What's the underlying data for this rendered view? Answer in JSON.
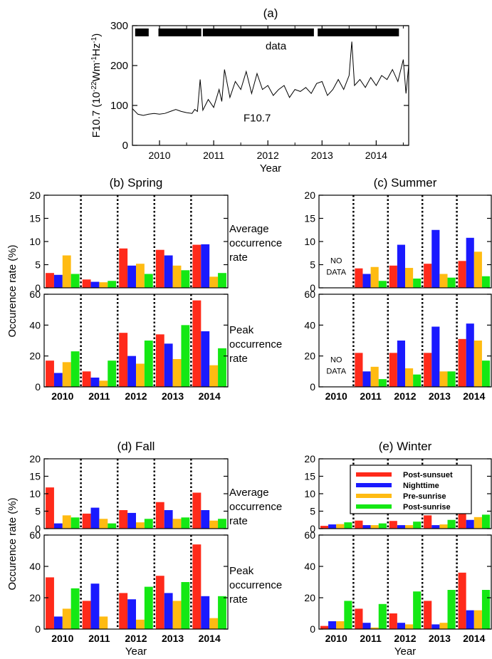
{
  "chart_data": [
    {
      "id": "a",
      "type": "line",
      "title": "(a)",
      "xlabel": "Year",
      "ylabel_html": "F10.7 (10<tspan baseline-shift=\"super\" font-size=\"9\">-22</tspan>Wm<tspan baseline-shift=\"super\" font-size=\"9\">-1</tspan>Hz<tspan baseline-shift=\"super\" font-size=\"9\">-1</tspan>)",
      "ylabel_parts": [
        "F10.7 (10",
        "-22",
        "Wm",
        "-1",
        "Hz",
        "-1",
        ")"
      ],
      "xlim": [
        2009.5,
        2014.6
      ],
      "ylim": [
        0,
        300
      ],
      "xticks": [
        "2010",
        "2011",
        "2012",
        "2013",
        "2014"
      ],
      "yticks": [
        "0",
        "100",
        "200",
        "300"
      ],
      "series_label": "F10.7",
      "data_label": "data",
      "data_coverage": [
        [
          2009.55,
          2009.8
        ],
        [
          2009.98,
          2010.77
        ],
        [
          2010.8,
          2012.85
        ],
        [
          2012.92,
          2014.42
        ]
      ],
      "series": [
        {
          "name": "F10.7",
          "x": [
            2009.5,
            2009.6,
            2009.7,
            2009.8,
            2009.9,
            2010.0,
            2010.1,
            2010.2,
            2010.3,
            2010.4,
            2010.5,
            2010.6,
            2010.65,
            2010.7,
            2010.75,
            2010.8,
            2010.9,
            2011.0,
            2011.1,
            2011.15,
            2011.2,
            2011.3,
            2011.4,
            2011.5,
            2011.6,
            2011.7,
            2011.8,
            2011.9,
            2012.0,
            2012.1,
            2012.2,
            2012.3,
            2012.4,
            2012.5,
            2012.6,
            2012.7,
            2012.8,
            2012.9,
            2013.0,
            2013.1,
            2013.2,
            2013.3,
            2013.4,
            2013.5,
            2013.55,
            2013.6,
            2013.7,
            2013.8,
            2013.9,
            2014.0,
            2014.1,
            2014.2,
            2014.3,
            2014.4,
            2014.5,
            2014.55,
            2014.6
          ],
          "values": [
            92,
            78,
            75,
            78,
            80,
            78,
            80,
            85,
            90,
            85,
            82,
            80,
            90,
            85,
            165,
            88,
            115,
            95,
            140,
            110,
            190,
            120,
            160,
            140,
            185,
            130,
            180,
            140,
            150,
            125,
            140,
            150,
            120,
            140,
            135,
            145,
            130,
            155,
            160,
            125,
            140,
            165,
            140,
            175,
            260,
            150,
            165,
            145,
            170,
            150,
            175,
            165,
            190,
            160,
            215,
            130,
            200
          ]
        }
      ]
    },
    {
      "id": "b",
      "type": "bar",
      "title": "(b) Spring",
      "categories": [
        "2010",
        "2011",
        "2012",
        "2013",
        "2014"
      ],
      "series_names": [
        "Post-sunsuet",
        "Nighttime",
        "Pre-sunrise",
        "Post-sunrise"
      ],
      "colors": [
        "#ff2a1a",
        "#1a1aff",
        "#ffbb12",
        "#14e814"
      ],
      "panels": [
        {
          "label": "Average occurrence rate",
          "label_lines": [
            "Average",
            "occurrence",
            "rate"
          ],
          "ylim": [
            0,
            20
          ],
          "yticks": [
            "0",
            "5",
            "10",
            "15",
            "20"
          ],
          "values": [
            [
              3.2,
              2.8,
              7.0,
              3.0
            ],
            [
              1.8,
              1.3,
              1.2,
              1.5
            ],
            [
              8.5,
              4.8,
              5.2,
              3.0
            ],
            [
              8.2,
              7.0,
              4.8,
              3.8
            ],
            [
              9.3,
              9.4,
              2.4,
              3.2
            ]
          ],
          "no_data": null
        },
        {
          "label": "Peak occurrence rate",
          "label_lines": [
            "Peak",
            "occurrence",
            "rate"
          ],
          "ylim": [
            0,
            60
          ],
          "yticks": [
            "0",
            "20",
            "40",
            "60"
          ],
          "values": [
            [
              17,
              9,
              16,
              23
            ],
            [
              10,
              6,
              4,
              17
            ],
            [
              35,
              20,
              15,
              30
            ],
            [
              34,
              28,
              18,
              40
            ],
            [
              56,
              36,
              14,
              25
            ]
          ],
          "no_data": null
        }
      ],
      "ylabel": "Occurence rate (%)",
      "xlabel": "",
      "show_xticklabels": true
    },
    {
      "id": "c",
      "type": "bar",
      "title": "(c) Summer",
      "categories": [
        "2010",
        "2011",
        "2012",
        "2013",
        "2014"
      ],
      "series_names": [
        "Post-sunsuet",
        "Nighttime",
        "Pre-sunrise",
        "Post-sunrise"
      ],
      "colors": [
        "#ff2a1a",
        "#1a1aff",
        "#ffbb12",
        "#14e814"
      ],
      "panels": [
        {
          "label": "",
          "label_lines": [],
          "ylim": [
            0,
            20
          ],
          "yticks": [
            "0",
            "5",
            "10",
            "15",
            "20"
          ],
          "values": [
            null,
            [
              4.2,
              3.0,
              4.5,
              1.5
            ],
            [
              4.8,
              9.3,
              4.3,
              2.0
            ],
            [
              5.2,
              12.5,
              3.0,
              2.2
            ],
            [
              5.8,
              10.8,
              7.8,
              2.5
            ]
          ],
          "no_data": [
            "NO",
            "DATA"
          ]
        },
        {
          "label": "",
          "label_lines": [],
          "ylim": [
            0,
            60
          ],
          "yticks": [
            "0",
            "20",
            "40",
            "60"
          ],
          "values": [
            null,
            [
              22,
              10,
              13,
              5
            ],
            [
              22,
              30,
              12,
              8
            ],
            [
              22,
              39,
              10,
              10
            ],
            [
              31,
              41,
              30,
              17
            ]
          ],
          "no_data": [
            "NO",
            "DATA"
          ]
        }
      ],
      "ylabel": "",
      "xlabel": "",
      "show_xticklabels": true
    },
    {
      "id": "d",
      "type": "bar",
      "title": "(d) Fall",
      "categories": [
        "2010",
        "2011",
        "2012",
        "2013",
        "2014"
      ],
      "series_names": [
        "Post-sunsuet",
        "Nighttime",
        "Pre-sunrise",
        "Post-sunrise"
      ],
      "colors": [
        "#ff2a1a",
        "#1a1aff",
        "#ffbb12",
        "#14e814"
      ],
      "panels": [
        {
          "label": "Average occurrence rate",
          "label_lines": [
            "Average",
            "occurrence",
            "rate"
          ],
          "ylim": [
            0,
            20
          ],
          "yticks": [
            "0",
            "5",
            "10",
            "15",
            "20"
          ],
          "values": [
            [
              11.8,
              1.5,
              3.8,
              3.2
            ],
            [
              4.3,
              6.0,
              2.8,
              1.5
            ],
            [
              5.3,
              4.5,
              1.8,
              2.8
            ],
            [
              7.6,
              5.3,
              2.8,
              3.2
            ],
            [
              10.3,
              5.3,
              2.3,
              2.8
            ]
          ],
          "no_data": null
        },
        {
          "label": "Peak occurrence rate",
          "label_lines": [
            "Peak",
            "occurrence",
            "rate"
          ],
          "ylim": [
            0,
            60
          ],
          "yticks": [
            "0",
            "20",
            "40",
            "60"
          ],
          "values": [
            [
              33,
              8,
              13,
              26
            ],
            [
              18,
              29,
              8,
              0
            ],
            [
              23,
              19,
              6,
              27
            ],
            [
              34,
              23,
              18,
              30
            ],
            [
              54,
              21,
              7,
              21
            ]
          ],
          "no_data": null
        }
      ],
      "ylabel": "Occurence rate (%)",
      "xlabel": "Year",
      "show_xticklabels": true
    },
    {
      "id": "e",
      "type": "bar",
      "title": "(e) Winter",
      "categories": [
        "2010",
        "2011",
        "2012",
        "2013",
        "2014"
      ],
      "series_names": [
        "Post-sunsuet",
        "Nighttime",
        "Pre-sunrise",
        "Post-sunrise"
      ],
      "colors": [
        "#ff2a1a",
        "#1a1aff",
        "#ffbb12",
        "#14e814"
      ],
      "legend": {
        "placement": "top-right",
        "entries": [
          "Post-sunsuet",
          "Nighttime",
          "Pre-sunrise",
          "Post-sunrise"
        ]
      },
      "panels": [
        {
          "label": "",
          "label_lines": [],
          "ylim": [
            0,
            20
          ],
          "yticks": [
            "0",
            "5",
            "10",
            "15",
            "20"
          ],
          "values": [
            [
              0.8,
              1.2,
              1.3,
              1.8
            ],
            [
              2.3,
              1.0,
              1.0,
              1.5
            ],
            [
              2.2,
              1.0,
              1.0,
              2.0
            ],
            [
              3.8,
              1.0,
              1.2,
              2.5
            ],
            [
              5.8,
              2.5,
              3.3,
              4.0
            ]
          ],
          "no_data": null
        },
        {
          "label": "",
          "label_lines": [],
          "ylim": [
            0,
            60
          ],
          "yticks": [
            "0",
            "20",
            "40",
            "60"
          ],
          "values": [
            [
              2,
              5,
              5,
              18
            ],
            [
              13,
              4,
              1,
              16
            ],
            [
              10,
              4,
              3,
              24
            ],
            [
              18,
              3,
              4,
              25
            ],
            [
              36,
              12,
              12,
              25
            ]
          ],
          "no_data": null
        }
      ],
      "ylabel": "",
      "xlabel": "Year",
      "show_xticklabels": true
    }
  ]
}
